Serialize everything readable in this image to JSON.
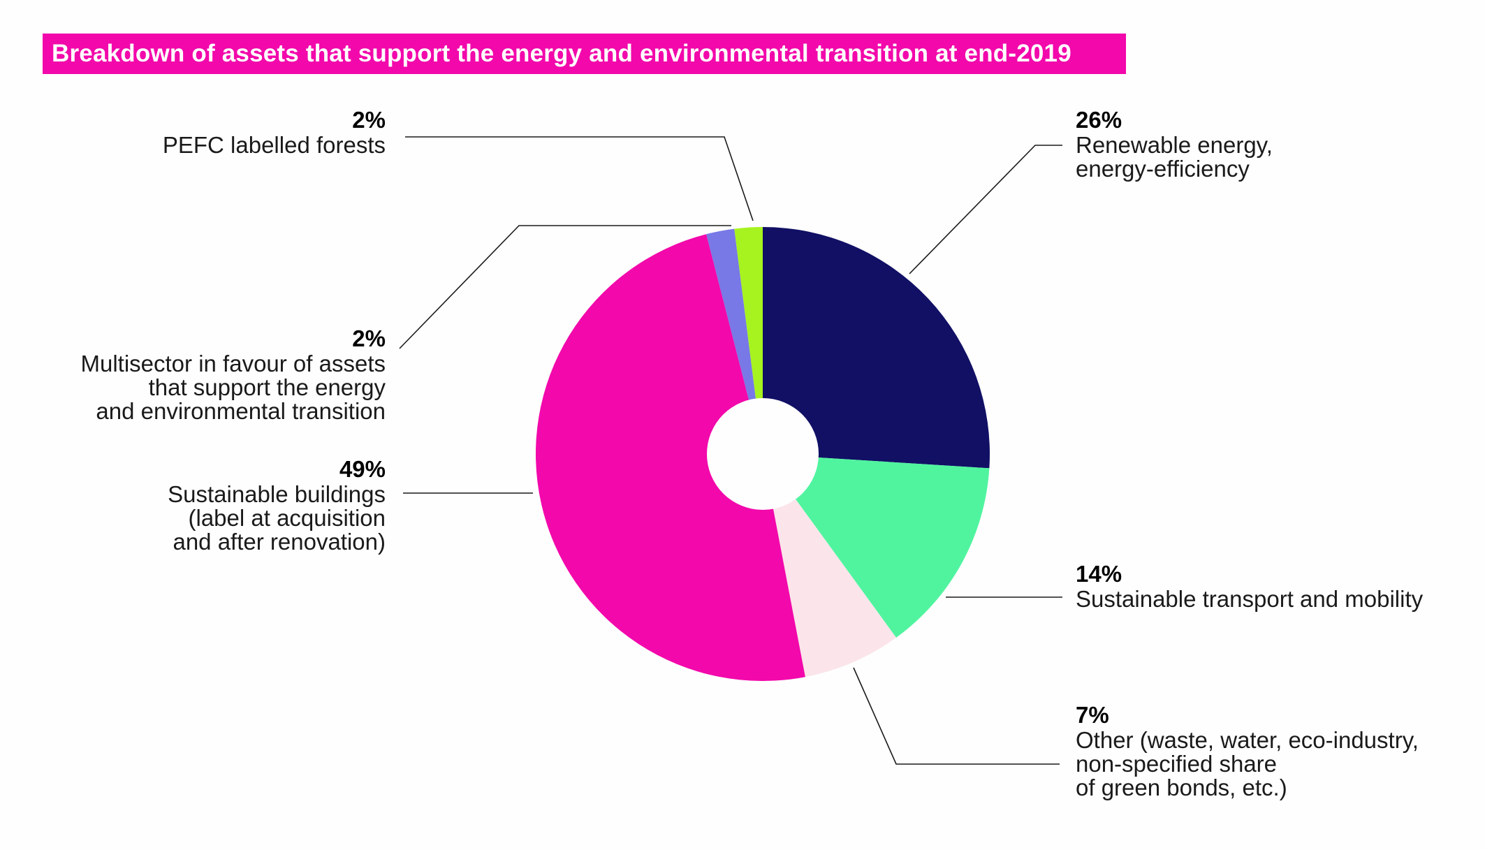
{
  "chart_data": {
    "type": "pie",
    "title": "Breakdown of assets that support the energy and environmental transition at end-2019",
    "slices": [
      {
        "key": "renewable",
        "label": "Renewable energy,\nenergy-efficiency",
        "pct_label": "26%",
        "value": 26,
        "color": "#111065"
      },
      {
        "key": "transport",
        "label": "Sustainable transport and mobility",
        "pct_label": "14%",
        "value": 14,
        "color": "#50f49f"
      },
      {
        "key": "other",
        "label": "Other (waste, water, eco-industry,\nnon-specified share\nof green bonds, etc.)",
        "pct_label": "7%",
        "value": 7,
        "color": "#fbe5ea"
      },
      {
        "key": "buildings",
        "label": "Sustainable buildings\n(label at acquisition\nand after renovation)",
        "pct_label": "49%",
        "value": 49,
        "color": "#f208ab"
      },
      {
        "key": "multisector",
        "label": "Multisector in favour of assets\nthat support the energy\nand environmental transition",
        "pct_label": "2%",
        "value": 2,
        "color": "#7879e6"
      },
      {
        "key": "pefc",
        "label": "PEFC labelled forests",
        "pct_label": "2%",
        "value": 2,
        "color": "#a6f320"
      }
    ]
  }
}
